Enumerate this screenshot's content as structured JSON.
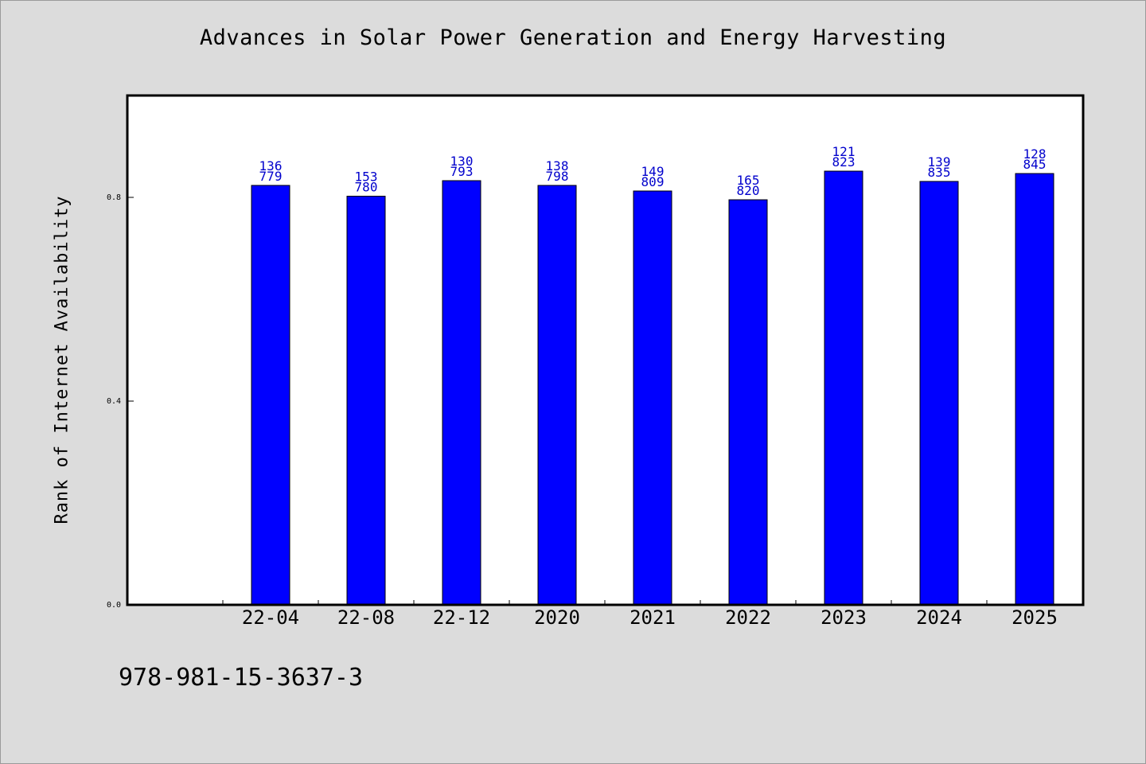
{
  "chart_data": {
    "type": "bar",
    "title": "Advances in Solar Power Generation and Energy Harvesting",
    "ylabel": "Rank of Internet Availability",
    "xlabel": "",
    "categories": [
      "22-04",
      "22-08",
      "22-12",
      "2020",
      "2021",
      "2022",
      "2023",
      "2024",
      "2025"
    ],
    "series": [
      {
        "values": [
          0.8235,
          0.8023,
          0.8328,
          0.8235,
          0.8125,
          0.7953,
          0.8515,
          0.8313,
          0.8468
        ]
      }
    ],
    "value_labels_top": [
      "136",
      "153",
      "130",
      "138",
      "149",
      "165",
      "121",
      "139",
      "128"
    ],
    "value_labels_bottom": [
      "779",
      "780",
      "793",
      "798",
      "809",
      "820",
      "823",
      "835",
      "845"
    ],
    "yticks": [
      0.0,
      0.4,
      0.8
    ],
    "ytick_labels": [
      "0.0",
      "0.4",
      "0.8"
    ],
    "ylim": [
      0,
      1.0
    ],
    "grid": false,
    "bar_color": "#0000ff",
    "label_color": "#0000cc"
  },
  "footer": {
    "isbn": "978-981-15-3637-3"
  }
}
